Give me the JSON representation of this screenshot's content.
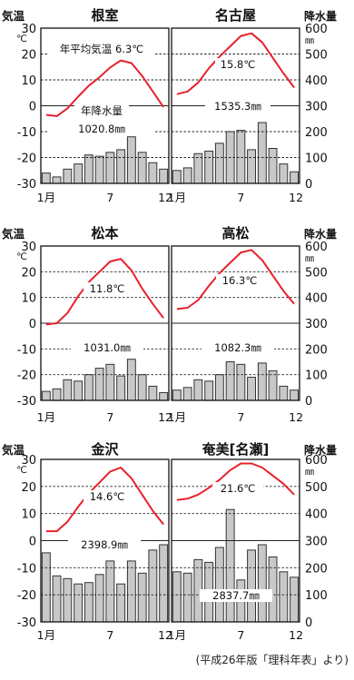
{
  "source_note": "(平成26年版「理科年表」より)",
  "colors": {
    "temperature_line": "#e8212b",
    "bar_fill": "#c8c8c8",
    "bar_edge": "#333333",
    "grid": "#222222"
  },
  "left_axis": {
    "label": "気温",
    "unit": "℃",
    "ticks": [
      30,
      20,
      10,
      0,
      -10,
      -20,
      -30
    ]
  },
  "right_axis": {
    "label": "降水量",
    "unit": "㎜",
    "ticks": [
      600,
      500,
      400,
      300,
      200,
      100,
      0
    ]
  },
  "month_labels": [
    "1月",
    "7",
    "12"
  ],
  "chart_data": [
    {
      "type": "bar+line",
      "city": "根室",
      "position": "top-left",
      "months": [
        1,
        2,
        3,
        4,
        5,
        6,
        7,
        8,
        9,
        10,
        11,
        12
      ],
      "temperature": {
        "values": [
          -3.5,
          -4.0,
          -1.0,
          3.5,
          7.8,
          11.0,
          14.8,
          17.5,
          16.5,
          11.5,
          5.5,
          -0.5
        ],
        "ylim": [
          -30,
          30
        ]
      },
      "precipitation": {
        "values": [
          40,
          25,
          55,
          75,
          110,
          105,
          120,
          130,
          180,
          120,
          80,
          55
        ],
        "ylim": [
          0,
          600
        ]
      },
      "annual_temperature_label": "年平均気温 6.3℃",
      "annual_precipitation_label": "年降水量",
      "annual_precipitation_value": "1020.8㎜"
    },
    {
      "type": "bar+line",
      "city": "名古屋",
      "position": "top-right",
      "months": [
        1,
        2,
        3,
        4,
        5,
        6,
        7,
        8,
        9,
        10,
        11,
        12
      ],
      "temperature": {
        "values": [
          4.5,
          5.5,
          9.0,
          14.5,
          19.0,
          23.0,
          27.0,
          28.0,
          24.5,
          18.5,
          12.5,
          7.0
        ],
        "ylim": [
          -30,
          30
        ]
      },
      "precipitation": {
        "values": [
          50,
          60,
          115,
          125,
          155,
          200,
          205,
          130,
          235,
          135,
          75,
          45
        ],
        "ylim": [
          0,
          600
        ]
      },
      "annual_temperature_label": "15.8℃",
      "annual_precipitation_value": "1535.3㎜"
    },
    {
      "type": "bar+line",
      "city": "松本",
      "position": "middle-left",
      "months": [
        1,
        2,
        3,
        4,
        5,
        6,
        7,
        8,
        9,
        10,
        11,
        12
      ],
      "temperature": {
        "values": [
          -0.5,
          0.0,
          4.0,
          10.5,
          16.0,
          20.0,
          24.0,
          25.0,
          20.5,
          13.5,
          7.5,
          2.0
        ],
        "ylim": [
          -30,
          30
        ]
      },
      "precipitation": {
        "values": [
          35,
          45,
          80,
          75,
          100,
          125,
          140,
          95,
          160,
          100,
          55,
          30
        ],
        "ylim": [
          0,
          600
        ]
      },
      "annual_temperature_label": "11.8℃",
      "annual_precipitation_value": "1031.0㎜"
    },
    {
      "type": "bar+line",
      "city": "高松",
      "position": "middle-right",
      "months": [
        1,
        2,
        3,
        4,
        5,
        6,
        7,
        8,
        9,
        10,
        11,
        12
      ],
      "temperature": {
        "values": [
          5.5,
          6.0,
          9.0,
          14.5,
          19.5,
          23.5,
          27.5,
          28.5,
          24.5,
          18.5,
          12.5,
          7.5
        ],
        "ylim": [
          -30,
          30
        ]
      },
      "precipitation": {
        "values": [
          40,
          50,
          80,
          75,
          100,
          150,
          140,
          90,
          145,
          115,
          55,
          40
        ],
        "ylim": [
          0,
          600
        ]
      },
      "annual_temperature_label": "16.3℃",
      "annual_precipitation_value": "1082.3㎜"
    },
    {
      "type": "bar+line",
      "city": "金沢",
      "position": "bottom-left",
      "months": [
        1,
        2,
        3,
        4,
        5,
        6,
        7,
        8,
        9,
        10,
        11,
        12
      ],
      "temperature": {
        "values": [
          3.5,
          3.5,
          7.0,
          12.5,
          17.5,
          21.5,
          25.5,
          27.0,
          23.0,
          17.0,
          11.0,
          6.0
        ],
        "ylim": [
          -30,
          30
        ]
      },
      "precipitation": {
        "values": [
          255,
          170,
          160,
          140,
          145,
          175,
          225,
          140,
          225,
          180,
          265,
          285
        ],
        "ylim": [
          0,
          600
        ]
      },
      "annual_temperature_label": "14.6℃",
      "annual_precipitation_value": "2398.9㎜"
    },
    {
      "type": "bar+line",
      "city": "奄美[名瀬]",
      "position": "bottom-right",
      "months": [
        1,
        2,
        3,
        4,
        5,
        6,
        7,
        8,
        9,
        10,
        11,
        12
      ],
      "temperature": {
        "values": [
          15.0,
          15.5,
          17.0,
          19.5,
          22.5,
          26.0,
          28.5,
          28.5,
          27.0,
          24.0,
          21.0,
          17.0
        ],
        "ylim": [
          -30,
          30
        ]
      },
      "precipitation": {
        "values": [
          185,
          180,
          230,
          220,
          275,
          415,
          155,
          265,
          285,
          240,
          185,
          165
        ],
        "ylim": [
          0,
          600
        ]
      },
      "annual_temperature_label": "21.6℃",
      "annual_precipitation_value": "2837.7㎜"
    }
  ]
}
